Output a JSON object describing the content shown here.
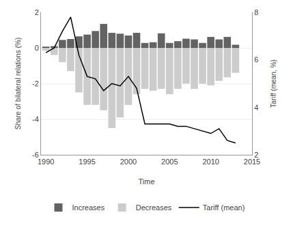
{
  "chart_data": {
    "type": "bar",
    "x": [
      1990,
      1991,
      1992,
      1993,
      1994,
      1995,
      1996,
      1997,
      1998,
      1999,
      2000,
      2001,
      2002,
      2003,
      2004,
      2005,
      2006,
      2007,
      2008,
      2009,
      2010,
      2011,
      2012,
      2013
    ],
    "series": [
      {
        "name": "Increases",
        "type": "bar",
        "color": "#636363",
        "values": [
          0.05,
          0.1,
          0.45,
          0.5,
          0.65,
          0.75,
          0.95,
          1.35,
          0.85,
          0.8,
          0.7,
          0.85,
          0.28,
          0.32,
          0.82,
          0.28,
          0.38,
          0.52,
          0.48,
          0.28,
          0.62,
          0.48,
          0.62,
          0.18
        ]
      },
      {
        "name": "Decreases",
        "type": "bar",
        "color": "#cccccc",
        "values": [
          -0.15,
          -0.4,
          -0.8,
          -1.3,
          -2.5,
          -3.2,
          -3.2,
          -3.5,
          -4.5,
          -3.9,
          -3.2,
          -2.6,
          -2.3,
          -2.4,
          -2.3,
          -2.6,
          -2.3,
          -2.0,
          -2.3,
          -2.0,
          -2.1,
          -1.85,
          -1.65,
          -1.4
        ]
      },
      {
        "name": "Tariff (mean)",
        "type": "line",
        "axis": "y2",
        "color": "#000000",
        "values": [
          6.3,
          6.5,
          7.2,
          7.8,
          6.2,
          5.3,
          5.2,
          4.7,
          5.0,
          4.9,
          5.3,
          4.8,
          3.3,
          3.3,
          3.3,
          3.3,
          3.2,
          3.2,
          3.1,
          3.0,
          2.9,
          3.1,
          2.6,
          2.5
        ]
      }
    ],
    "xlabel": "Time",
    "ylabel": "Share of bilateral relations (%)",
    "y2label": "Tariff (mean, %)",
    "xlim": [
      1989.4,
      2015.0
    ],
    "xticks": [
      1990,
      1995,
      2000,
      2005,
      2010,
      2015
    ],
    "ylim": [
      -6,
      2
    ],
    "yticks": [
      -6,
      -4,
      -2,
      0,
      2
    ],
    "y2lim": [
      2,
      8
    ],
    "y2ticks": [
      2,
      4,
      6,
      8
    ],
    "grid": true,
    "legend": "bottom"
  }
}
